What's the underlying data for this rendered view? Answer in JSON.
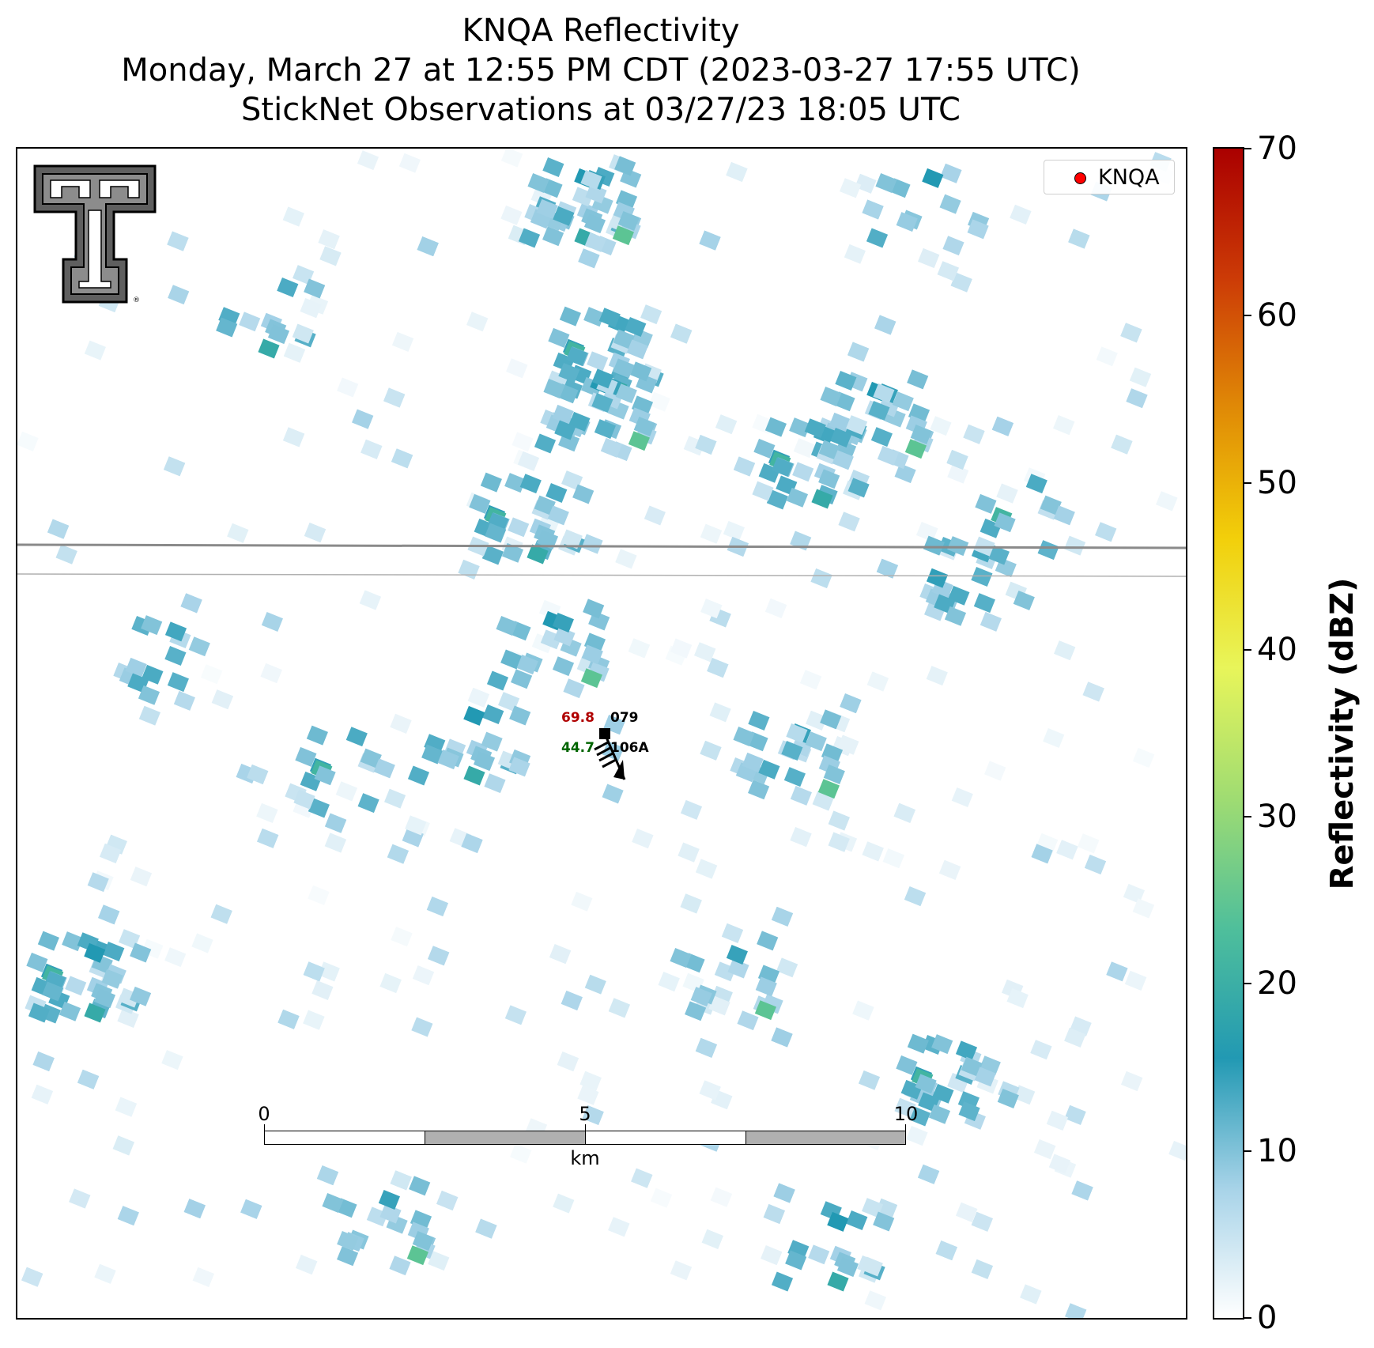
{
  "title": {
    "line1": "KNQA Reflectivity",
    "line2": "Monday, March 27 at 12:55 PM CDT (2023-03-27 17:55 UTC)",
    "line3": "StickNet Observations at 03/27/23 18:05 UTC"
  },
  "legend": {
    "label": "KNQA",
    "marker_color": "#ff0000"
  },
  "logo": {
    "name": "Texas Tech Double T",
    "text": "TT"
  },
  "station": {
    "temperature": "69.8",
    "temperature_color": "#b00000",
    "dewpoint": "44.7",
    "dewpoint_color": "#006400",
    "pressure_code": "079",
    "station_id": "106A"
  },
  "scalebar": {
    "ticks": [
      "0",
      "5",
      "10"
    ],
    "unit": "km"
  },
  "colorbar": {
    "label": "Reflectivity (dBZ)",
    "ticks": [
      "0",
      "10",
      "20",
      "30",
      "40",
      "50",
      "60",
      "70"
    ],
    "min": 0,
    "max": 70,
    "colors": [
      "#ffffff",
      "#a7d3e8",
      "#2299b3",
      "#4fbf9b",
      "#9fdc72",
      "#e8f55a",
      "#f2cf0a",
      "#e08a06",
      "#cc3b06",
      "#aa0000"
    ]
  }
}
